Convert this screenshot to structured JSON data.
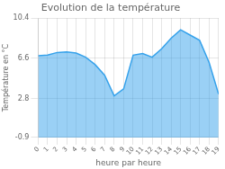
{
  "chart_data": {
    "type": "area",
    "title": "Evolution de la température",
    "xlabel": "heure par heure",
    "ylabel": "Température en °C",
    "x": [
      0,
      1,
      2,
      3,
      4,
      5,
      6,
      7,
      8,
      9,
      10,
      11,
      12,
      13,
      14,
      15,
      16,
      17,
      18,
      19
    ],
    "values": [
      6.85,
      6.9,
      7.15,
      7.2,
      7.1,
      6.7,
      6.0,
      5.0,
      3.05,
      3.7,
      6.9,
      7.05,
      6.7,
      7.5,
      8.5,
      9.3,
      8.8,
      8.3,
      6.2,
      3.2
    ],
    "xlim": [
      0,
      19
    ],
    "xticks": [
      0,
      1,
      2,
      3,
      4,
      5,
      6,
      7,
      8,
      9,
      10,
      11,
      12,
      13,
      14,
      15,
      16,
      17,
      18,
      19
    ],
    "ylim": [
      -0.9,
      10.4
    ],
    "yticks": [
      -0.9,
      2.8,
      6.6,
      10.4
    ],
    "grid": true
  }
}
